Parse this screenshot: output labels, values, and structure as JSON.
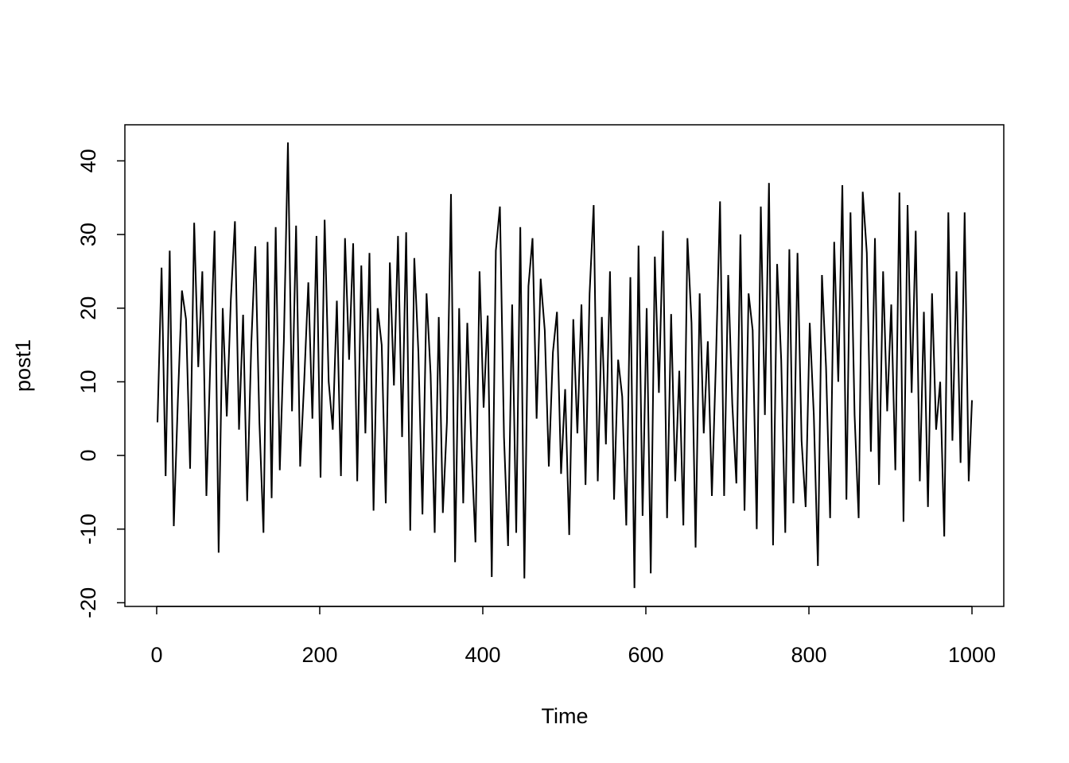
{
  "chart_data": {
    "type": "line",
    "x_label": "Time",
    "y_label": "post1",
    "x": [
      1,
      6,
      11,
      16,
      21,
      26,
      31,
      36,
      41,
      46,
      51,
      56,
      61,
      66,
      71,
      76,
      81,
      86,
      91,
      96,
      101,
      106,
      111,
      116,
      121,
      126,
      131,
      136,
      141,
      146,
      151,
      156,
      161,
      166,
      171,
      176,
      181,
      186,
      191,
      196,
      201,
      206,
      211,
      216,
      221,
      226,
      231,
      236,
      241,
      246,
      251,
      256,
      261,
      266,
      271,
      276,
      281,
      286,
      291,
      296,
      301,
      306,
      311,
      316,
      321,
      326,
      331,
      336,
      341,
      346,
      351,
      356,
      361,
      366,
      371,
      376,
      381,
      386,
      391,
      396,
      401,
      406,
      411,
      416,
      421,
      426,
      431,
      436,
      441,
      446,
      451,
      456,
      461,
      466,
      471,
      476,
      481,
      486,
      491,
      496,
      501,
      506,
      511,
      516,
      521,
      526,
      531,
      536,
      541,
      546,
      551,
      556,
      561,
      566,
      571,
      576,
      581,
      586,
      591,
      596,
      601,
      606,
      611,
      616,
      621,
      626,
      631,
      636,
      641,
      646,
      651,
      656,
      661,
      666,
      671,
      676,
      681,
      686,
      691,
      696,
      701,
      706,
      711,
      716,
      721,
      726,
      731,
      736,
      741,
      746,
      751,
      756,
      761,
      766,
      771,
      776,
      781,
      786,
      791,
      796,
      801,
      806,
      811,
      816,
      821,
      826,
      831,
      836,
      841,
      846,
      851,
      856,
      861,
      866,
      871,
      876,
      881,
      886,
      891,
      896,
      901,
      906,
      911,
      916,
      921,
      926,
      931,
      936,
      941,
      946,
      951,
      956,
      961,
      966,
      971,
      976,
      981,
      986,
      991,
      996,
      1000
    ],
    "series": [
      {
        "color": "#000000",
        "values": [
          4.5,
          25.5,
          -2.8,
          27.8,
          -9.6,
          7.5,
          22.4,
          18.5,
          -1.8,
          31.6,
          12.0,
          25.0,
          -5.5,
          13.5,
          30.5,
          -13.2,
          20.0,
          5.3,
          21.2,
          31.8,
          3.5,
          19.1,
          -6.2,
          15.0,
          28.4,
          4.5,
          -10.5,
          29.0,
          -5.8,
          31.0,
          -2.0,
          15.5,
          42.5,
          6.0,
          31.2,
          -1.5,
          10.2,
          23.5,
          5.0,
          29.8,
          -3.0,
          32.0,
          10.0,
          3.5,
          21.0,
          -2.8,
          29.5,
          13.0,
          28.8,
          -3.5,
          25.8,
          3.0,
          27.5,
          -7.5,
          20.0,
          15.0,
          -6.5,
          26.2,
          9.5,
          29.8,
          2.5,
          30.3,
          -10.2,
          26.8,
          14.0,
          -8.0,
          22.0,
          11.0,
          -10.5,
          18.8,
          -7.8,
          4.5,
          35.5,
          -14.5,
          20.0,
          -6.5,
          18.0,
          1.0,
          -11.8,
          25.0,
          6.5,
          19.0,
          -16.5,
          27.8,
          33.8,
          2.5,
          -12.3,
          20.5,
          -10.5,
          31.0,
          -16.7,
          23.0,
          29.5,
          5.0,
          24.0,
          17.0,
          -1.5,
          14.0,
          19.5,
          -2.5,
          9.0,
          -10.8,
          18.5,
          3.0,
          20.5,
          -4.0,
          22.0,
          34.0,
          -3.5,
          18.8,
          1.5,
          25.0,
          -6.0,
          13.0,
          8.0,
          -9.5,
          24.2,
          -18.0,
          28.5,
          -8.2,
          20.0,
          -16.0,
          27.0,
          8.5,
          30.5,
          -8.5,
          19.2,
          -3.5,
          11.5,
          -9.5,
          29.5,
          18.0,
          -12.5,
          22.0,
          3.0,
          15.5,
          -5.5,
          13.0,
          34.5,
          -5.5,
          24.5,
          7.0,
          -3.8,
          30.0,
          -7.5,
          22.0,
          17.0,
          -10.0,
          33.8,
          5.5,
          37.0,
          -12.2,
          26.0,
          13.0,
          -10.5,
          28.0,
          -6.5,
          27.5,
          2.0,
          -7.0,
          18.0,
          5.5,
          -15.0,
          24.5,
          12.0,
          -8.5,
          29.0,
          10.0,
          36.7,
          -6.0,
          33.0,
          5.5,
          -8.5,
          35.8,
          27.5,
          0.5,
          29.5,
          -4.0,
          25.0,
          6.0,
          20.5,
          -2.0,
          35.7,
          -9.0,
          34.0,
          8.5,
          30.5,
          -3.5,
          19.5,
          -7.0,
          22.0,
          3.5,
          10.0,
          -11.0,
          33.0,
          2.0,
          25.0,
          -1.0,
          33.0,
          -3.5,
          7.5
        ]
      }
    ],
    "xlim": [
      -39,
      1039
    ],
    "ylim": [
      -20.5,
      44.9
    ],
    "xticks": [
      0,
      200,
      400,
      600,
      800,
      1000
    ],
    "yticks": [
      -20,
      -10,
      0,
      10,
      20,
      30,
      40
    ]
  }
}
